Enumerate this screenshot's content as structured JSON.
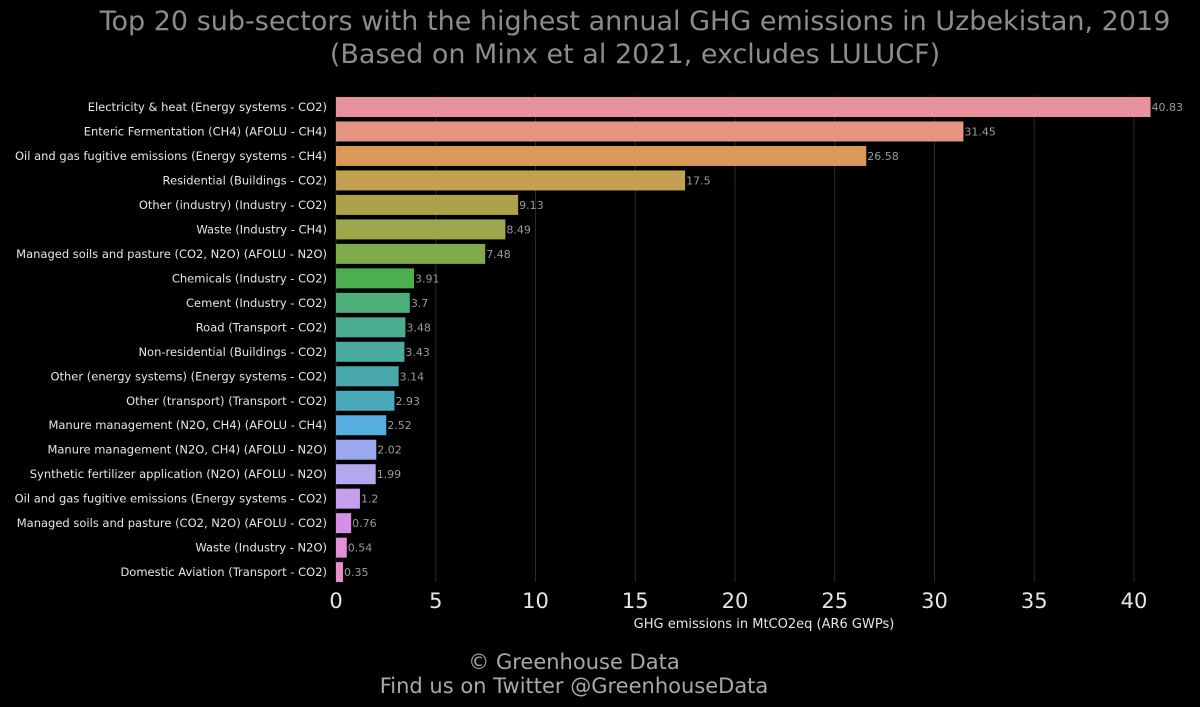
{
  "title": "Top 20 sub-sectors with the highest annual GHG emissions in Uzbekistan, 2019",
  "subtitle": "(Based on Minx et al 2021, excludes LULUCF)",
  "footer": {
    "line1": "© Greenhouse Data",
    "line2": "Find us on Twitter @GreenhouseData"
  },
  "chart_data": {
    "type": "bar",
    "orientation": "horizontal",
    "title": "Top 20 sub-sectors with the highest annual GHG emissions in Uzbekistan, 2019",
    "subtitle": "(Based on Minx et al 2021, excludes LULUCF)",
    "xlabel": "GHG emissions in MtCO2eq (AR6 GWPs)",
    "ylabel": "",
    "xlim": [
      0,
      42
    ],
    "xticks": [
      "0",
      "5",
      "10",
      "15",
      "20",
      "25",
      "30",
      "35",
      "40"
    ],
    "grid": "vertical",
    "categories": [
      "Electricity & heat (Energy systems - CO2)",
      "Enteric Fermentation (CH4) (AFOLU - CH4)",
      "Oil and gas fugitive emissions (Energy systems - CH4)",
      "Residential (Buildings - CO2)",
      "Other (industry) (Industry - CO2)",
      "Waste (Industry - CH4)",
      "Managed soils and pasture (CO2, N2O) (AFOLU - N2O)",
      "Chemicals (Industry - CO2)",
      "Cement (Industry - CO2)",
      "Road (Transport - CO2)",
      "Non-residential (Buildings - CO2)",
      "Other (energy systems) (Energy systems - CO2)",
      "Other (transport) (Transport - CO2)",
      "Manure management (N2O, CH4) (AFOLU - CH4)",
      "Manure management (N2O, CH4) (AFOLU - N2O)",
      "Synthetic fertilizer application (N2O) (AFOLU - N2O)",
      "Oil and gas fugitive emissions (Energy systems - CO2)",
      "Managed soils and pasture (CO2, N2O) (AFOLU - CO2)",
      "Waste (Industry - N2O)",
      "Domestic Aviation (Transport - CO2)"
    ],
    "values": [
      40.83,
      31.45,
      26.58,
      17.5,
      9.13,
      8.49,
      7.48,
      3.91,
      3.7,
      3.48,
      3.43,
      3.14,
      2.93,
      2.52,
      2.02,
      1.99,
      1.2,
      0.76,
      0.54,
      0.35
    ],
    "value_labels": [
      "40.83",
      "31.45",
      "26.58",
      "17.5",
      "9.13",
      "8.49",
      "7.48",
      "3.91",
      "3.7",
      "3.48",
      "3.43",
      "3.14",
      "2.93",
      "2.52",
      "2.02",
      "1.99",
      "1.2",
      "0.76",
      "0.54",
      "0.35"
    ],
    "colors": [
      "#e8919f",
      "#e5957f",
      "#d99a57",
      "#c4a053",
      "#ada24a",
      "#9ea74b",
      "#7fab4d",
      "#4caf4f",
      "#4cae7b",
      "#4bac91",
      "#4aac9f",
      "#4aa9ac",
      "#4aa9ba",
      "#56aee0",
      "#9aa8ef",
      "#b3a7ef",
      "#c5a0ee",
      "#d78fe6",
      "#e68fd9",
      "#e88fc5"
    ]
  }
}
